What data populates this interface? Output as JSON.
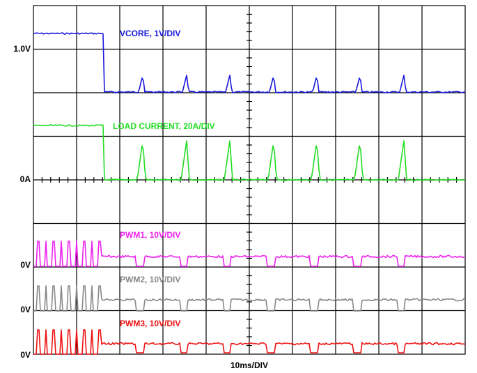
{
  "axis_labels": {
    "vcore": "1.0V",
    "load": "0A",
    "pwm1": "0V",
    "pwm2": "0V",
    "pwm3": "0V",
    "time": "10ms/DIV"
  },
  "traces": {
    "vcore": "VCORE, 1V/DIV",
    "load": "LOAD CURRENT, 20A/DIV",
    "pwm1": "PWM1, 10V/DIV",
    "pwm2": "PWM2, 10V/DIV",
    "pwm3": "PWM3, 10V/DIV"
  }
}
